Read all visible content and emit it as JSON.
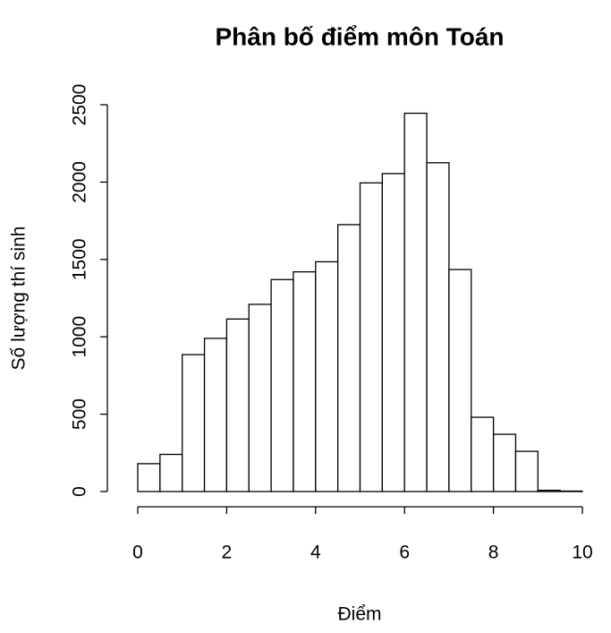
{
  "chart_data": {
    "type": "histogram",
    "title": "Phân bố điểm môn Toán",
    "x_label": "Điểm",
    "y_label": "Số lượng thí sinh",
    "bins": [
      0,
      0.5,
      1,
      1.5,
      2,
      2.5,
      3,
      3.5,
      4,
      4.5,
      5,
      5.5,
      6,
      6.5,
      7,
      7.5,
      8,
      8.5,
      9,
      9.5,
      10
    ],
    "values": [
      180,
      240,
      885,
      990,
      1115,
      1210,
      1370,
      1420,
      1485,
      1725,
      1995,
      2055,
      2445,
      2125,
      1435,
      480,
      370,
      260,
      8,
      3
    ],
    "color": "#ffffff",
    "edge_color": "#000000",
    "xlim": [
      0,
      10
    ],
    "xticks": [
      0,
      2,
      4,
      6,
      8,
      10
    ],
    "ylim": [
      0,
      2500
    ],
    "yticks": [
      0,
      500,
      1000,
      1500,
      2000,
      2500
    ]
  }
}
